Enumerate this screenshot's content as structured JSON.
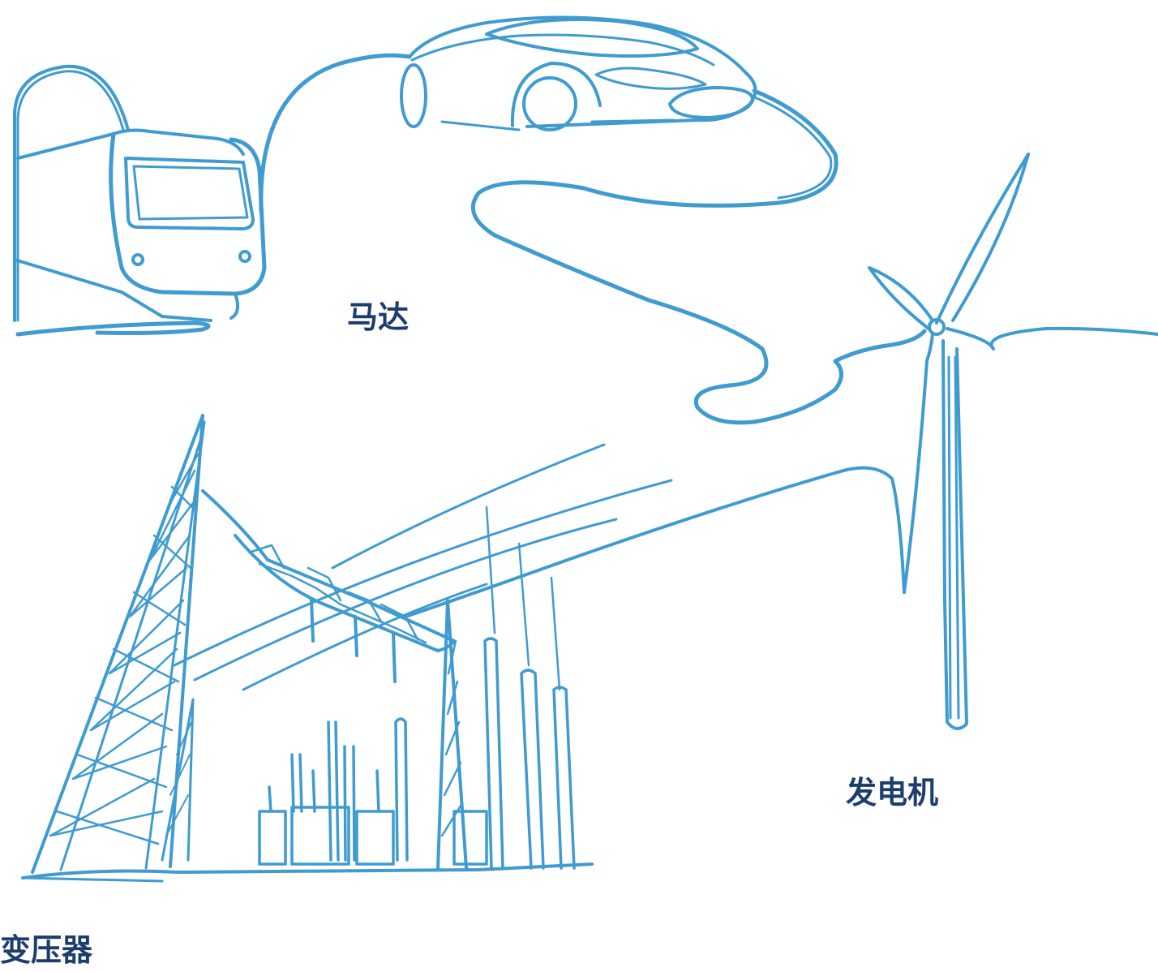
{
  "labels": {
    "motor": "马达",
    "generator": "发电机",
    "transformer": "变压器"
  },
  "colors": {
    "line": "#3f9bd0",
    "label": "#1c3d6e",
    "background": "#ffffff"
  },
  "illustrations": [
    "train-icon",
    "car-icon",
    "wind-turbine-icon",
    "substation-icon"
  ]
}
